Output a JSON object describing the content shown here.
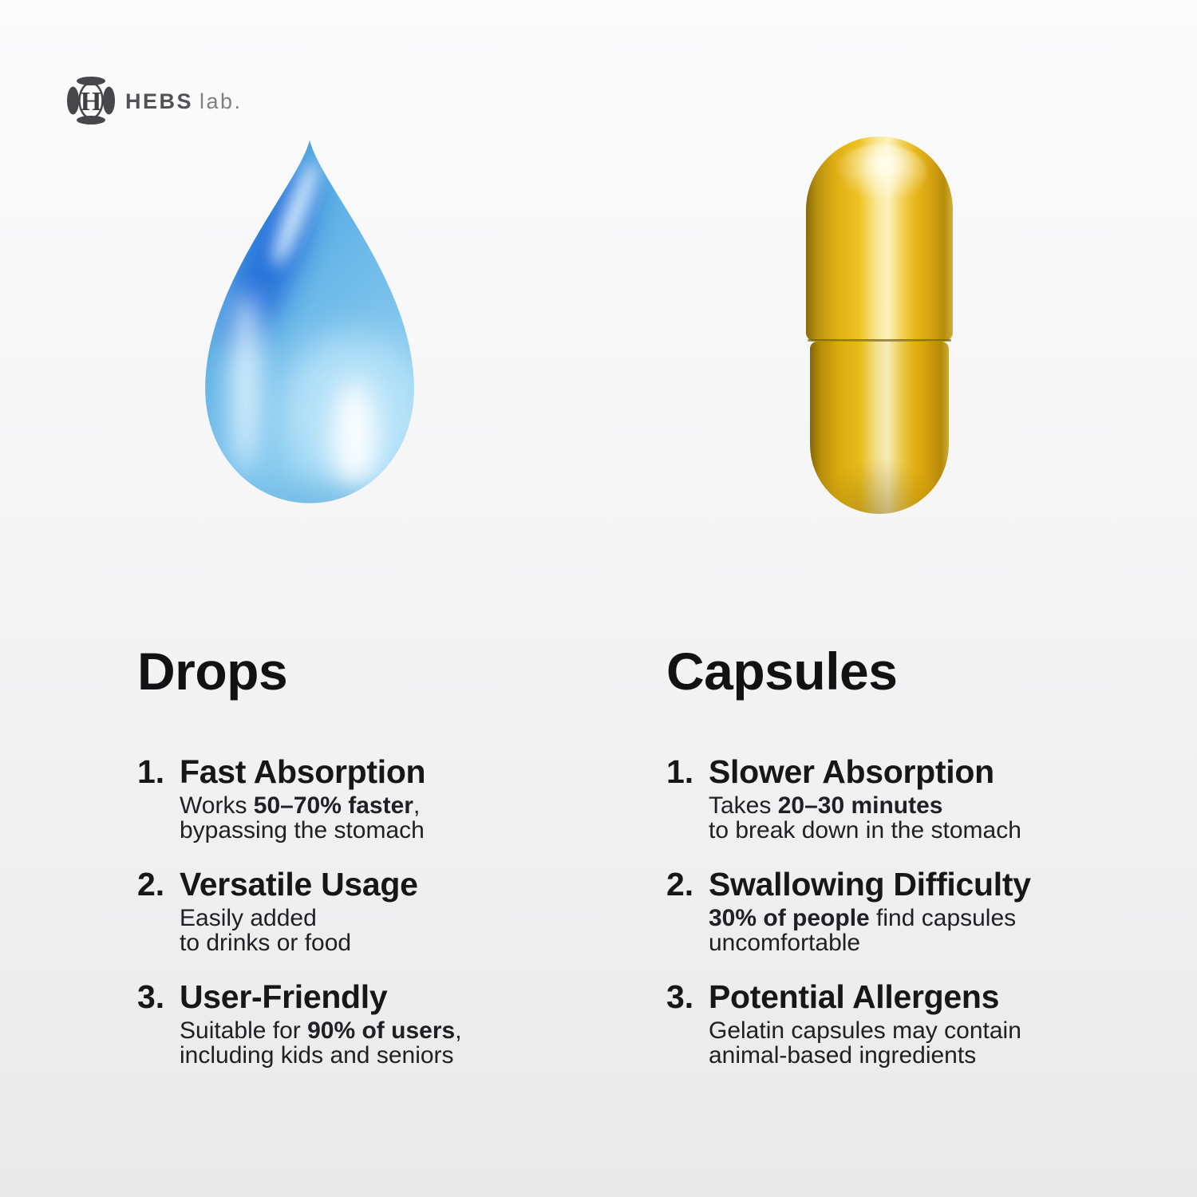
{
  "brand": {
    "name": "HEBS",
    "suffix": "lab.",
    "monogram_letter": "H"
  },
  "figures": {
    "left": "blue-water-drop",
    "right": "yellow-capsule"
  },
  "colors": {
    "drop_main": "#5fb0e6",
    "drop_dark_streak": "#1b66d8",
    "drop_highlight": "#e9f7ff",
    "capsule_main": "#eec222",
    "capsule_dark": "#86690a",
    "capsule_highlight": "#fdf2bd",
    "text": "#17171a",
    "logo_dark": "#515156",
    "logo_light": "#7f7f84",
    "background_top": "#fbfbfc",
    "background_bottom": "#e9e9ea"
  },
  "columns": [
    {
      "id": "drops",
      "heading": "Drops",
      "items": [
        {
          "num": "1.",
          "title": "Fast Absorption",
          "desc": [
            [
              {
                "t": "Works "
              },
              {
                "t": "50–70% faster",
                "b": true
              },
              {
                "t": ","
              }
            ],
            [
              {
                "t": "bypassing the stomach"
              }
            ]
          ]
        },
        {
          "num": "2.",
          "title": "Versatile Usage",
          "desc": [
            [
              {
                "t": "Easily added"
              }
            ],
            [
              {
                "t": "to drinks or food"
              }
            ]
          ]
        },
        {
          "num": "3.",
          "title": "User-Friendly",
          "desc": [
            [
              {
                "t": "Suitable for "
              },
              {
                "t": "90% of users",
                "b": true
              },
              {
                "t": ","
              }
            ],
            [
              {
                "t": "including kids and seniors"
              }
            ]
          ]
        }
      ]
    },
    {
      "id": "capsules",
      "heading": "Capsules",
      "items": [
        {
          "num": "1.",
          "title": "Slower Absorption",
          "desc": [
            [
              {
                "t": "Takes "
              },
              {
                "t": "20–30 minutes",
                "b": true
              }
            ],
            [
              {
                "t": "to break down in the stomach"
              }
            ]
          ]
        },
        {
          "num": "2.",
          "title": "Swallowing Difficulty",
          "desc": [
            [
              {
                "t": "30% of people",
                "b": true
              },
              {
                "t": " find capsules"
              }
            ],
            [
              {
                "t": "uncomfortable"
              }
            ]
          ]
        },
        {
          "num": "3.",
          "title": "Potential Allergens",
          "desc": [
            [
              {
                "t": "Gelatin capsules may contain"
              }
            ],
            [
              {
                "t": "animal-based ingredients"
              }
            ]
          ]
        }
      ]
    }
  ]
}
